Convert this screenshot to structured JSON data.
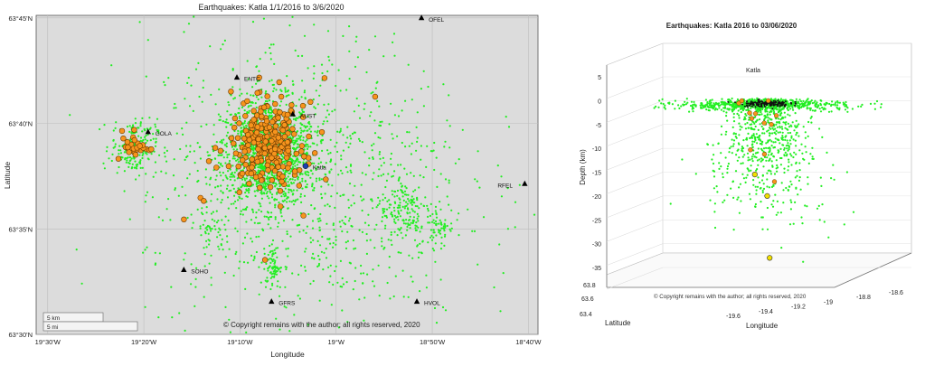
{
  "colors": {
    "map_bg": "#dcdcdc",
    "small_quake": "#22ee22",
    "large_quake_fill": "#f7941d",
    "large_quake_stroke": "#6b3b00",
    "deep_quake_fill": "#f2e000",
    "katla_marker": "#1a3fb0",
    "station": "#000000"
  },
  "chart_data": [
    {
      "type": "scatter",
      "title": "Earthquakes: Katla 1/1/2016 to 3/6/2020",
      "xlabel": "Longitude",
      "ylabel": "Latitude",
      "xlim": [
        -19.52,
        -18.65
      ],
      "ylim": [
        63.5,
        63.752
      ],
      "grid": true,
      "x_ticks": [
        {
          "value": -19.5,
          "label": "19°30'W"
        },
        {
          "value": -19.3333,
          "label": "19°20'W"
        },
        {
          "value": -19.1667,
          "label": "19°10'W"
        },
        {
          "value": -19.0,
          "label": "19°W"
        },
        {
          "value": -18.8333,
          "label": "18°50'W"
        },
        {
          "value": -18.6667,
          "label": "18°40'W"
        }
      ],
      "y_ticks": [
        {
          "value": 63.5,
          "label": "63°30'N"
        },
        {
          "value": 63.5833,
          "label": "63°35'N"
        },
        {
          "value": 63.6667,
          "label": "63°40'N"
        },
        {
          "value": 63.75,
          "label": "63°45'N"
        }
      ],
      "stations": [
        {
          "name": "OFEL",
          "lon": -18.852,
          "lat": 63.75
        },
        {
          "name": "ENTC",
          "lon": -19.172,
          "lat": 63.703
        },
        {
          "name": "AUST",
          "lon": -19.075,
          "lat": 63.674
        },
        {
          "name": "GOLA",
          "lon": -19.326,
          "lat": 63.66
        },
        {
          "name": "Katla",
          "lon": -19.053,
          "lat": 63.633
        },
        {
          "name": "RFEL",
          "lon": -18.673,
          "lat": 63.619
        },
        {
          "name": "SOHO",
          "lon": -19.264,
          "lat": 63.551
        },
        {
          "name": "GFRS",
          "lon": -19.112,
          "lat": 63.526
        },
        {
          "name": "HVOL",
          "lon": -18.86,
          "lat": 63.526
        }
      ],
      "scalebar": [
        "5 km",
        "5 mi"
      ],
      "copyright": "© Copyright remains with the author; all rights reserved, 2020",
      "series": [
        {
          "clusters": [
            {
              "lon": -19.12,
              "lat": 63.643,
              "slon": 0.04,
              "slat": 0.021,
              "n": 1400
            },
            {
              "lon": -19.35,
              "lat": 63.648,
              "slon": 0.02,
              "slat": 0.011,
              "n": 180
            },
            {
              "lon": -19.11,
              "lat": 63.553,
              "slon": 0.006,
              "slat": 0.008,
              "n": 70
            },
            {
              "lon": -18.88,
              "lat": 63.598,
              "slon": 0.022,
              "slat": 0.014,
              "n": 160
            },
            {
              "lon": -18.82,
              "lat": 63.585,
              "slon": 0.012,
              "slat": 0.008,
              "n": 50
            },
            {
              "lon": -19.22,
              "lat": 63.585,
              "slon": 0.012,
              "slat": 0.008,
              "n": 40
            },
            {
              "lon": -19.05,
              "lat": 63.62,
              "slon": 0.14,
              "slat": 0.06,
              "n": 950
            }
          ]
        },
        {
          "clusters": [
            {
              "lon": -19.12,
              "lat": 63.65,
              "slon": 0.032,
              "slat": 0.016,
              "n": 230
            },
            {
              "lon": -19.35,
              "lat": 63.649,
              "slon": 0.013,
              "slat": 0.006,
              "n": 28
            },
            {
              "lon": -19.12,
              "lat": 63.64,
              "slon": 0.08,
              "slat": 0.035,
              "n": 22
            }
          ]
        }
      ]
    },
    {
      "type": "scatter",
      "title": "Earthquakes: Katla 2016 to 03/06/2020",
      "xlabel": "Longitude",
      "ylabel": "Latitude",
      "zlabel": "Depth (km)",
      "zlim": [
        -35,
        5
      ],
      "xlim": [
        -19.6,
        -18.6
      ],
      "ylim": [
        63.4,
        63.8
      ],
      "z_ticks": [
        5,
        0,
        -5,
        -10,
        -15,
        -20,
        -25,
        -30,
        -35
      ],
      "x_tick_labels": [
        "-19.6",
        "-19.4",
        "-19.2",
        "-19",
        "-18.8",
        "-18.6"
      ],
      "y_tick_labels": [
        "63.4",
        "63.6",
        "63.8"
      ],
      "annotation": "Katla",
      "copyright": "© Copyright remains with the author; all rights reserved, 2020",
      "series": [
        {
          "groups": [
            {
              "depth_mean": -1.0,
              "depth_sd": 0.6,
              "n": 600
            },
            {
              "depth_mean": -5,
              "depth_sd": 5,
              "n": 380
            },
            {
              "depth_mean": -13,
              "depth_sd": 7,
              "n": 320
            }
          ]
        },
        {
          "groups": [
            {
              "depth_mean": -5,
              "depth_sd": 5,
              "n": 12
            }
          ],
          "highlighted": [
            {
              "lon": -19.23,
              "depth": -15.5
            },
            {
              "lon": -19.18,
              "depth": -20
            },
            {
              "lon": -19.17,
              "depth": -33
            }
          ]
        }
      ]
    }
  ]
}
